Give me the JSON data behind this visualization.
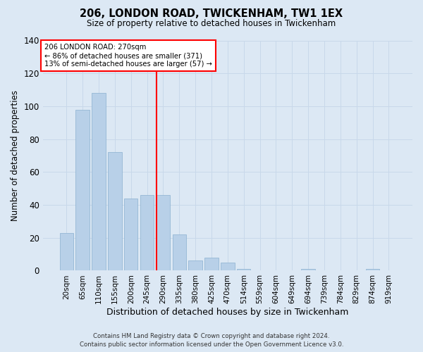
{
  "title1": "206, LONDON ROAD, TWICKENHAM, TW1 1EX",
  "title2": "Size of property relative to detached houses in Twickenham",
  "xlabel": "Distribution of detached houses by size in Twickenham",
  "ylabel": "Number of detached properties",
  "categories": [
    "20sqm",
    "65sqm",
    "110sqm",
    "155sqm",
    "200sqm",
    "245sqm",
    "290sqm",
    "335sqm",
    "380sqm",
    "425sqm",
    "470sqm",
    "514sqm",
    "559sqm",
    "604sqm",
    "649sqm",
    "694sqm",
    "739sqm",
    "784sqm",
    "829sqm",
    "874sqm",
    "919sqm"
  ],
  "values": [
    23,
    98,
    108,
    72,
    44,
    46,
    46,
    22,
    6,
    8,
    5,
    1,
    0,
    0,
    0,
    1,
    0,
    0,
    0,
    1,
    0
  ],
  "bar_color": "#b8d0e8",
  "bar_edge_color": "#8ab0d0",
  "grid_color": "#c8d8ea",
  "bg_color": "#dce8f4",
  "vline_color": "red",
  "annotation_text": "206 LONDON ROAD: 270sqm\n← 86% of detached houses are smaller (371)\n13% of semi-detached houses are larger (57) →",
  "annotation_box_color": "white",
  "annotation_border_color": "red",
  "footer1": "Contains HM Land Registry data © Crown copyright and database right 2024.",
  "footer2": "Contains public sector information licensed under the Open Government Licence v3.0.",
  "ylim": [
    0,
    140
  ],
  "yticks": [
    0,
    20,
    40,
    60,
    80,
    100,
    120,
    140
  ],
  "vline_bar_index": 6
}
